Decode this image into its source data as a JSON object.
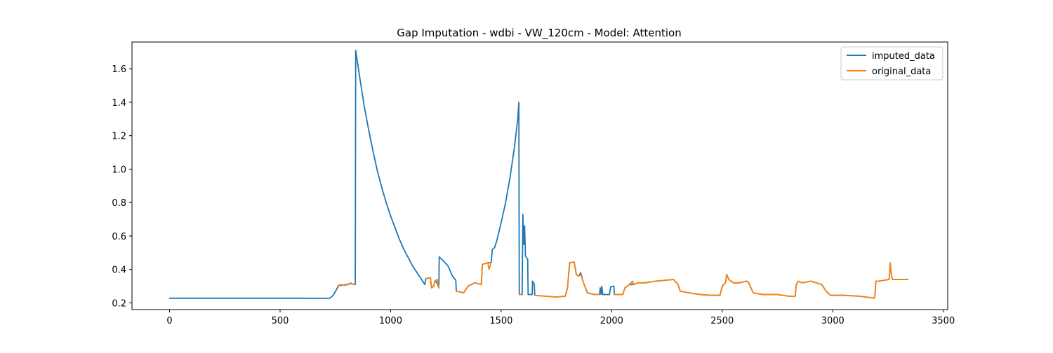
{
  "chart_data": {
    "type": "line",
    "title": "Gap Imputation - wdbi - VW_120cm - Model: Attention",
    "xlabel": "",
    "ylabel": "",
    "xlim": [
      -170,
      3520
    ],
    "ylim": [
      0.16,
      1.76
    ],
    "x_ticks": [
      0,
      500,
      1000,
      1500,
      2000,
      2500,
      3000,
      3500
    ],
    "y_ticks": [
      0.2,
      0.4,
      0.6,
      0.8,
      1.0,
      1.2,
      1.4,
      1.6
    ],
    "x_tick_labels": [
      "0",
      "500",
      "1000",
      "1500",
      "2000",
      "2500",
      "3000",
      "3500"
    ],
    "y_tick_labels": [
      "0.2",
      "0.4",
      "0.6",
      "0.8",
      "1.0",
      "1.2",
      "1.4",
      "1.6"
    ],
    "grid": false,
    "legend_position": "top-right",
    "series": [
      {
        "name": "imputed_data",
        "color": "#1f77b4",
        "points": [
          [
            0,
            0.228
          ],
          [
            200,
            0.228
          ],
          [
            400,
            0.228
          ],
          [
            600,
            0.228
          ],
          [
            700,
            0.227
          ],
          [
            725,
            0.228
          ],
          [
            740,
            0.245
          ],
          [
            755,
            0.28
          ],
          [
            765,
            0.305
          ],
          [
            780,
            0.305
          ],
          [
            800,
            0.31
          ],
          [
            820,
            0.315
          ],
          [
            840,
            0.31
          ],
          [
            842,
            1.71
          ],
          [
            860,
            1.55
          ],
          [
            880,
            1.38
          ],
          [
            900,
            1.24
          ],
          [
            920,
            1.11
          ],
          [
            940,
            0.99
          ],
          [
            960,
            0.89
          ],
          [
            980,
            0.8
          ],
          [
            1000,
            0.72
          ],
          [
            1020,
            0.65
          ],
          [
            1040,
            0.58
          ],
          [
            1060,
            0.52
          ],
          [
            1080,
            0.47
          ],
          [
            1100,
            0.42
          ],
          [
            1120,
            0.38
          ],
          [
            1140,
            0.34
          ],
          [
            1155,
            0.31
          ],
          [
            1160,
            0.345
          ],
          [
            1180,
            0.35
          ],
          [
            1185,
            0.29
          ],
          [
            1195,
            0.3
          ],
          [
            1200,
            0.33
          ],
          [
            1210,
            0.32
          ],
          [
            1218,
            0.29
          ],
          [
            1220,
            0.475
          ],
          [
            1240,
            0.45
          ],
          [
            1260,
            0.42
          ],
          [
            1280,
            0.36
          ],
          [
            1295,
            0.335
          ],
          [
            1297,
            0.27
          ],
          [
            1330,
            0.26
          ],
          [
            1350,
            0.3
          ],
          [
            1380,
            0.32
          ],
          [
            1410,
            0.31
          ],
          [
            1415,
            0.43
          ],
          [
            1440,
            0.44
          ],
          [
            1455,
            0.44
          ],
          [
            1460,
            0.52
          ],
          [
            1470,
            0.53
          ],
          [
            1480,
            0.57
          ],
          [
            1500,
            0.68
          ],
          [
            1520,
            0.8
          ],
          [
            1540,
            0.95
          ],
          [
            1560,
            1.13
          ],
          [
            1575,
            1.3
          ],
          [
            1580,
            1.4
          ],
          [
            1582,
            0.25
          ],
          [
            1590,
            0.25
          ],
          [
            1595,
            0.25
          ],
          [
            1598,
            0.73
          ],
          [
            1603,
            0.55
          ],
          [
            1606,
            0.66
          ],
          [
            1610,
            0.48
          ],
          [
            1620,
            0.46
          ],
          [
            1622,
            0.25
          ],
          [
            1640,
            0.25
          ],
          [
            1642,
            0.33
          ],
          [
            1650,
            0.31
          ],
          [
            1652,
            0.245
          ],
          [
            1700,
            0.24
          ],
          [
            1750,
            0.235
          ],
          [
            1790,
            0.24
          ],
          [
            1800,
            0.29
          ],
          [
            1810,
            0.44
          ],
          [
            1830,
            0.445
          ],
          [
            1840,
            0.37
          ],
          [
            1850,
            0.36
          ],
          [
            1860,
            0.38
          ],
          [
            1870,
            0.33
          ],
          [
            1890,
            0.26
          ],
          [
            1920,
            0.25
          ],
          [
            1945,
            0.25
          ],
          [
            1948,
            0.29
          ],
          [
            1952,
            0.25
          ],
          [
            1955,
            0.3
          ],
          [
            1960,
            0.25
          ],
          [
            1990,
            0.25
          ],
          [
            1995,
            0.295
          ],
          [
            2010,
            0.3
          ],
          [
            2012,
            0.25
          ],
          [
            2050,
            0.25
          ],
          [
            2060,
            0.29
          ],
          [
            2080,
            0.31
          ],
          [
            2100,
            0.31
          ],
          [
            2120,
            0.32
          ],
          [
            2150,
            0.32
          ],
          [
            2200,
            0.33
          ],
          [
            2280,
            0.34
          ],
          [
            2300,
            0.31
          ],
          [
            2310,
            0.27
          ],
          [
            2350,
            0.26
          ],
          [
            2400,
            0.25
          ],
          [
            2450,
            0.245
          ],
          [
            2490,
            0.245
          ],
          [
            2500,
            0.3
          ],
          [
            2515,
            0.32
          ],
          [
            2520,
            0.37
          ],
          [
            2530,
            0.34
          ],
          [
            2550,
            0.32
          ],
          [
            2580,
            0.32
          ],
          [
            2610,
            0.33
          ],
          [
            2620,
            0.32
          ],
          [
            2640,
            0.26
          ],
          [
            2680,
            0.25
          ],
          [
            2750,
            0.25
          ],
          [
            2800,
            0.24
          ],
          [
            2830,
            0.24
          ],
          [
            2835,
            0.31
          ],
          [
            2845,
            0.33
          ],
          [
            2860,
            0.32
          ],
          [
            2900,
            0.33
          ],
          [
            2950,
            0.31
          ],
          [
            2970,
            0.27
          ],
          [
            2990,
            0.245
          ],
          [
            3050,
            0.245
          ],
          [
            3120,
            0.24
          ],
          [
            3180,
            0.23
          ],
          [
            3190,
            0.23
          ],
          [
            3195,
            0.33
          ],
          [
            3210,
            0.33
          ],
          [
            3230,
            0.335
          ],
          [
            3255,
            0.34
          ],
          [
            3260,
            0.44
          ],
          [
            3265,
            0.37
          ],
          [
            3270,
            0.34
          ],
          [
            3300,
            0.34
          ],
          [
            3340,
            0.34
          ]
        ]
      },
      {
        "name": "original_data",
        "color": "#ff7f0e",
        "segments": [
          [
            [
              760,
              0.3
            ],
            [
              770,
              0.31
            ],
            [
              790,
              0.305
            ],
            [
              810,
              0.31
            ],
            [
              820,
              0.32
            ],
            [
              830,
              0.31
            ],
            [
              842,
              0.31
            ]
          ],
          [
            [
              1160,
              0.345
            ],
            [
              1180,
              0.35
            ],
            [
              1185,
              0.29
            ],
            [
              1195,
              0.3
            ],
            [
              1200,
              0.33
            ],
            [
              1210,
              0.34
            ],
            [
              1218,
              0.29
            ]
          ],
          [
            [
              1297,
              0.27
            ],
            [
              1330,
              0.26
            ],
            [
              1350,
              0.3
            ],
            [
              1380,
              0.32
            ],
            [
              1410,
              0.31
            ],
            [
              1415,
              0.43
            ],
            [
              1440,
              0.44
            ],
            [
              1445,
              0.4
            ],
            [
              1455,
              0.44
            ]
          ],
          [
            [
              1582,
              0.25
            ],
            [
              1590,
              0.25
            ],
            [
              1597,
              0.25
            ]
          ],
          [
            [
              1652,
              0.245
            ],
            [
              1700,
              0.24
            ],
            [
              1750,
              0.235
            ],
            [
              1790,
              0.24
            ],
            [
              1800,
              0.29
            ],
            [
              1810,
              0.44
            ],
            [
              1830,
              0.445
            ],
            [
              1840,
              0.37
            ],
            [
              1850,
              0.36
            ],
            [
              1860,
              0.37
            ],
            [
              1870,
              0.33
            ],
            [
              1890,
              0.26
            ],
            [
              1920,
              0.25
            ],
            [
              1945,
              0.25
            ]
          ],
          [
            [
              2012,
              0.25
            ],
            [
              2050,
              0.25
            ],
            [
              2060,
              0.29
            ],
            [
              2080,
              0.31
            ],
            [
              2095,
              0.33
            ],
            [
              2100,
              0.31
            ],
            [
              2120,
              0.32
            ],
            [
              2150,
              0.32
            ],
            [
              2200,
              0.33
            ],
            [
              2280,
              0.34
            ],
            [
              2300,
              0.31
            ],
            [
              2310,
              0.27
            ],
            [
              2350,
              0.26
            ],
            [
              2400,
              0.25
            ],
            [
              2450,
              0.245
            ],
            [
              2490,
              0.245
            ],
            [
              2500,
              0.3
            ],
            [
              2515,
              0.32
            ],
            [
              2520,
              0.37
            ],
            [
              2530,
              0.34
            ],
            [
              2550,
              0.32
            ],
            [
              2580,
              0.32
            ],
            [
              2610,
              0.33
            ],
            [
              2620,
              0.32
            ],
            [
              2640,
              0.26
            ],
            [
              2680,
              0.25
            ],
            [
              2750,
              0.25
            ],
            [
              2800,
              0.24
            ],
            [
              2830,
              0.24
            ],
            [
              2835,
              0.31
            ],
            [
              2845,
              0.33
            ],
            [
              2860,
              0.32
            ],
            [
              2900,
              0.33
            ],
            [
              2950,
              0.31
            ],
            [
              2970,
              0.27
            ],
            [
              2990,
              0.245
            ],
            [
              3050,
              0.245
            ],
            [
              3120,
              0.24
            ],
            [
              3180,
              0.23
            ],
            [
              3190,
              0.23
            ],
            [
              3195,
              0.33
            ],
            [
              3210,
              0.33
            ],
            [
              3230,
              0.335
            ],
            [
              3255,
              0.34
            ],
            [
              3260,
              0.44
            ],
            [
              3265,
              0.37
            ],
            [
              3270,
              0.34
            ],
            [
              3300,
              0.34
            ],
            [
              3340,
              0.34
            ]
          ]
        ]
      }
    ]
  }
}
